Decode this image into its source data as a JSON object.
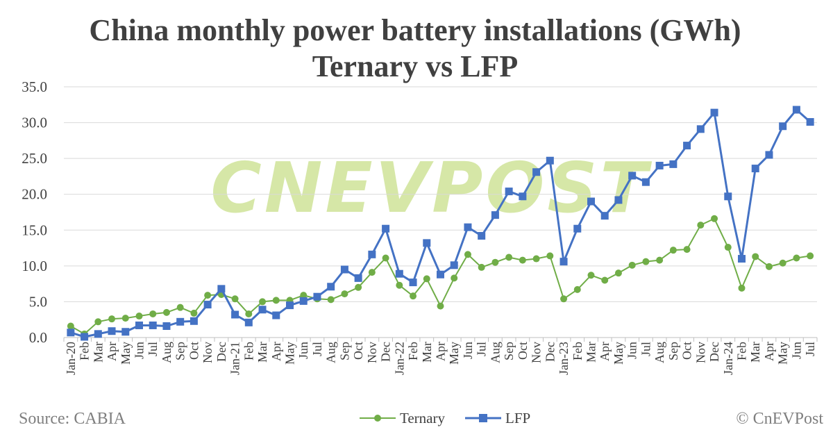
{
  "chart_data": {
    "type": "line",
    "title_line1": "China monthly power battery installations (GWh)",
    "title_line2": "Ternary vs LFP",
    "source": "Source: CABIA",
    "copyright": "© CnEVPost",
    "watermark": "CnEVPost",
    "ylim": [
      0,
      35
    ],
    "y_ticks": [
      "0.0",
      "5.0",
      "10.0",
      "15.0",
      "20.0",
      "25.0",
      "30.0",
      "35.0"
    ],
    "grid": "horizontal",
    "legend_position": "bottom-center",
    "categories": [
      "Jan-20",
      "Feb",
      "Mar",
      "Apr",
      "May",
      "Jun",
      "Jul",
      "Aug",
      "Sep",
      "Oct",
      "Nov",
      "Dec",
      "Jan-21",
      "Feb",
      "Mar",
      "Apr",
      "May",
      "Jun",
      "Jul",
      "Aug",
      "Sep",
      "Oct",
      "Nov",
      "Dec",
      "Jan-22",
      "Feb",
      "Mar",
      "Apr",
      "May",
      "Jun",
      "Jul",
      "Aug",
      "Sep",
      "Oct",
      "Nov",
      "Dec",
      "Jan-23",
      "Feb",
      "Mar",
      "Apr",
      "May",
      "Jun",
      "Jul",
      "Aug",
      "Sep",
      "Oct",
      "Nov",
      "Dec",
      "Jan-24",
      "Feb",
      "Mar",
      "Apr",
      "May",
      "Jun",
      "Jul"
    ],
    "series": [
      {
        "name": "Ternary",
        "color": "#70ad47",
        "marker": "circle",
        "values": [
          1.6,
          0.5,
          2.2,
          2.6,
          2.7,
          3.0,
          3.3,
          3.5,
          4.2,
          3.4,
          5.9,
          6.0,
          5.4,
          3.3,
          5.0,
          5.2,
          5.2,
          5.9,
          5.4,
          5.3,
          6.1,
          7.0,
          9.1,
          11.1,
          7.3,
          5.8,
          8.2,
          4.4,
          8.3,
          11.6,
          9.8,
          10.5,
          11.2,
          10.8,
          11.0,
          11.4,
          5.4,
          6.7,
          8.7,
          8.0,
          9.0,
          10.1,
          10.6,
          10.8,
          12.2,
          12.3,
          15.7,
          16.6,
          12.6,
          6.9,
          11.3,
          9.9,
          10.4,
          11.1,
          11.4
        ]
      },
      {
        "name": "LFP",
        "color": "#4472c4",
        "marker": "square",
        "values": [
          0.7,
          0.1,
          0.5,
          0.9,
          0.8,
          1.7,
          1.7,
          1.6,
          2.2,
          2.3,
          4.6,
          6.8,
          3.2,
          2.1,
          3.9,
          3.1,
          4.5,
          5.1,
          5.7,
          7.1,
          9.5,
          8.3,
          11.6,
          15.2,
          8.9,
          7.7,
          13.2,
          8.8,
          10.1,
          15.4,
          14.2,
          17.1,
          20.4,
          19.7,
          23.1,
          24.7,
          10.6,
          15.2,
          19.0,
          17.0,
          19.2,
          22.6,
          21.7,
          24.0,
          24.2,
          26.8,
          29.1,
          31.4,
          19.7,
          11.0,
          23.6,
          25.5,
          29.5,
          31.8,
          30.1
        ]
      }
    ]
  }
}
